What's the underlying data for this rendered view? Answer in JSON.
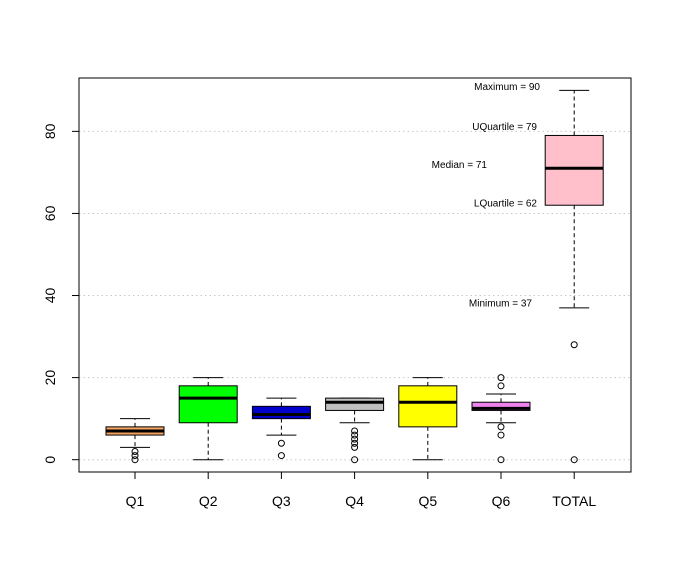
{
  "chart_data": {
    "type": "boxplot",
    "title": "",
    "xlabel": "",
    "ylabel": "",
    "ylim": [
      -3,
      93
    ],
    "y_ticks": [
      0,
      20,
      40,
      60,
      80
    ],
    "y_tick_labels": [
      "0",
      "20",
      "40",
      "60",
      "80"
    ],
    "grid": "horizontal dotted at y ticks",
    "categories": [
      "Q1",
      "Q2",
      "Q3",
      "Q4",
      "Q5",
      "Q6",
      "TOTAL"
    ],
    "boxes": [
      {
        "label": "Q1",
        "whisker_low": 3,
        "q1": 6,
        "median": 7,
        "q3": 8,
        "whisker_high": 10,
        "outliers": [
          0,
          1,
          2
        ],
        "color": "#f4a460"
      },
      {
        "label": "Q2",
        "whisker_low": 0,
        "q1": 9,
        "median": 15,
        "q3": 18,
        "whisker_high": 20,
        "outliers": [],
        "color": "#00ff00"
      },
      {
        "label": "Q3",
        "whisker_low": 6,
        "q1": 10,
        "median": 11,
        "q3": 13,
        "whisker_high": 15,
        "outliers": [
          1,
          4
        ],
        "color": "#0000cd"
      },
      {
        "label": "Q4",
        "whisker_low": 9,
        "q1": 12,
        "median": 14,
        "q3": 15,
        "whisker_high": 15,
        "outliers": [
          0,
          3,
          4,
          5,
          6,
          7
        ],
        "color": "#c0c0c0"
      },
      {
        "label": "Q5",
        "whisker_low": 0,
        "q1": 8,
        "median": 14,
        "q3": 18,
        "whisker_high": 20,
        "outliers": [],
        "color": "#ffff00"
      },
      {
        "label": "Q6",
        "whisker_low": 9,
        "q1": 12,
        "median": 12.5,
        "q3": 14,
        "whisker_high": 16,
        "outliers": [
          0,
          6,
          8,
          18,
          20
        ],
        "color": "#ee82ee"
      },
      {
        "label": "TOTAL",
        "whisker_low": 37,
        "q1": 62,
        "median": 71,
        "q3": 79,
        "whisker_high": 90,
        "outliers": [
          0,
          28
        ],
        "color": "#ffc0cb"
      }
    ],
    "annotations": [
      {
        "text": "Maximum  = 90",
        "y": 90,
        "anchor_box": "TOTAL"
      },
      {
        "text": "UQuartile = 79",
        "y": 79,
        "anchor_box": "TOTAL"
      },
      {
        "text": "Median = 71",
        "y": 71,
        "anchor_box": "TOTAL"
      },
      {
        "text": "LQuartile = 62",
        "y": 62,
        "anchor_box": "TOTAL"
      },
      {
        "text": "Minimum = 37",
        "y": 37,
        "anchor_box": "TOTAL"
      }
    ]
  }
}
